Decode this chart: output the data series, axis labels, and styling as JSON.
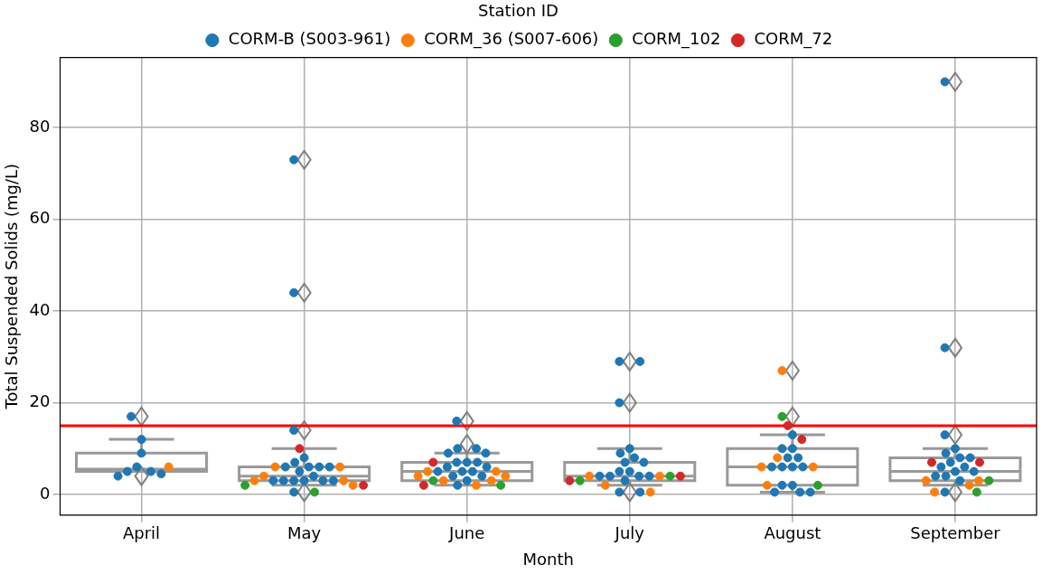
{
  "chart_data": {
    "type": "box",
    "xlabel": "Month",
    "ylabel": "Total Suspended Solids (mg/L)",
    "categories": [
      "April",
      "May",
      "June",
      "July",
      "August",
      "September"
    ],
    "boxes": [
      {
        "low": 5,
        "q1": 5,
        "median": 5.5,
        "q3": 9,
        "high": 12,
        "outliers": [
          17,
          4
        ]
      },
      {
        "low": 2,
        "q1": 3,
        "median": 4,
        "q3": 6,
        "high": 10,
        "outliers": [
          14,
          44,
          73,
          0.5
        ]
      },
      {
        "low": 2,
        "q1": 3,
        "median": 5,
        "q3": 7,
        "high": 9,
        "outliers": [
          16,
          11
        ]
      },
      {
        "low": 2,
        "q1": 3,
        "median": 4,
        "q3": 7,
        "high": 10,
        "outliers": [
          29,
          20,
          0.5
        ]
      },
      {
        "low": 0.5,
        "q1": 2,
        "median": 6,
        "q3": 10,
        "high": 13,
        "outliers": [
          27,
          17
        ]
      },
      {
        "low": 2,
        "q1": 3,
        "median": 5,
        "q3": 8,
        "high": 10,
        "outliers": [
          90,
          32,
          13,
          0.5
        ]
      }
    ],
    "series": [
      {
        "name": "CORM-B (S003-961)",
        "type": "scatter",
        "color": "#1f77b4",
        "x": [
          "April",
          "April",
          "April",
          "April",
          "April",
          "April",
          "April",
          "April",
          "May",
          "May",
          "May",
          "May",
          "May",
          "May",
          "May",
          "May",
          "May",
          "May",
          "May",
          "May",
          "May",
          "May",
          "May",
          "May",
          "May",
          "May",
          "June",
          "June",
          "June",
          "June",
          "June",
          "June",
          "June",
          "June",
          "June",
          "June",
          "June",
          "June",
          "June",
          "June",
          "June",
          "June",
          "June",
          "July",
          "July",
          "July",
          "July",
          "July",
          "July",
          "July",
          "July",
          "July",
          "July",
          "July",
          "July",
          "July",
          "July",
          "July",
          "July",
          "July",
          "August",
          "August",
          "August",
          "August",
          "August",
          "August",
          "August",
          "August",
          "August",
          "August",
          "August",
          "August",
          "August",
          "August",
          "September",
          "September",
          "September",
          "September",
          "September",
          "September",
          "September",
          "September",
          "September",
          "September",
          "September",
          "September",
          "September",
          "September",
          "September",
          "September"
        ],
        "values": [
          17,
          12,
          9,
          6,
          5,
          5,
          4.5,
          4,
          73,
          44,
          14,
          8,
          7,
          6,
          6,
          6,
          6,
          5,
          4,
          3,
          3,
          3,
          3,
          3,
          3,
          0.5,
          16,
          10,
          10,
          9,
          9,
          7,
          7,
          7,
          6,
          6,
          5,
          5,
          5,
          4,
          4,
          3,
          2,
          29,
          29,
          20,
          10,
          9,
          8,
          7,
          7,
          5,
          5,
          4,
          4,
          4,
          4,
          3,
          0.5,
          0.5,
          13,
          10,
          10,
          8,
          8,
          6,
          6,
          6,
          6,
          2,
          2,
          0.5,
          0.5,
          0.5,
          90,
          32,
          13,
          10,
          9,
          8,
          8,
          7,
          6,
          6,
          5,
          5,
          4,
          4,
          3,
          0.5
        ]
      },
      {
        "name": "CORM_36 (S007-606)",
        "type": "scatter",
        "color": "#ff7f0e",
        "x": [
          "April",
          "May",
          "May",
          "May",
          "May",
          "May",
          "May",
          "June",
          "June",
          "June",
          "June",
          "June",
          "June",
          "June",
          "July",
          "July",
          "July",
          "July",
          "August",
          "August",
          "August",
          "August",
          "August",
          "September",
          "September",
          "September",
          "September"
        ],
        "values": [
          6,
          6,
          6,
          4,
          3,
          3,
          2,
          5,
          5,
          4,
          4,
          3,
          3,
          2,
          4,
          4,
          2,
          0.5,
          27,
          8,
          6,
          6,
          2,
          3,
          3,
          2,
          0.5
        ]
      },
      {
        "name": "CORM_102",
        "type": "scatter",
        "color": "#2ca02c",
        "x": [
          "May",
          "May",
          "June",
          "June",
          "July",
          "July",
          "August",
          "August",
          "September",
          "September"
        ],
        "values": [
          2,
          0.5,
          3,
          2,
          4,
          3,
          17,
          2,
          3,
          0.5
        ]
      },
      {
        "name": "CORM_72",
        "type": "scatter",
        "color": "#d62728",
        "x": [
          "May",
          "May",
          "June",
          "June",
          "July",
          "July",
          "August",
          "August",
          "September",
          "September"
        ],
        "values": [
          10,
          2,
          7,
          2,
          4,
          3,
          15,
          12,
          7,
          7
        ]
      }
    ],
    "ylim": [
      -4.5,
      95.3
    ],
    "yticks": [
      0,
      20,
      40,
      60,
      80
    ],
    "grid": true,
    "legend": "top",
    "legend_title": "Station ID",
    "marker": "circle",
    "ref_lines": [
      {
        "axis": "y",
        "value": 15,
        "color": "#ff0000"
      }
    ]
  }
}
